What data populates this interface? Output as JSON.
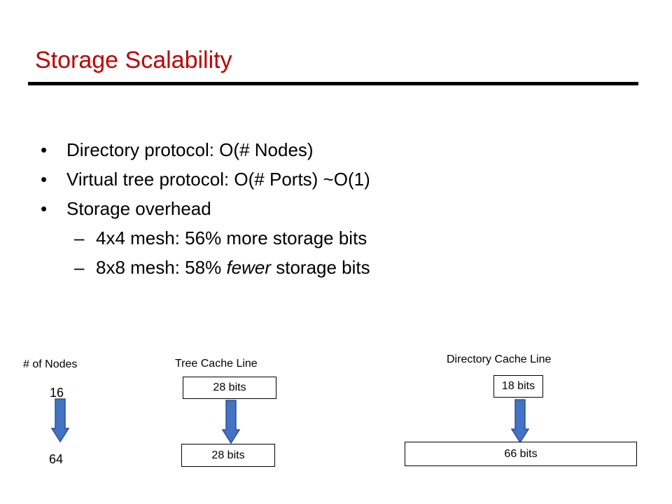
{
  "slide": {
    "title": "Storage Scalability"
  },
  "bullets": [
    {
      "mark": "•",
      "text": "Directory protocol: O(# Nodes)"
    },
    {
      "mark": "•",
      "text": "Virtual tree protocol: O(# Ports) ~O(1)"
    },
    {
      "mark": "•",
      "text": "Storage overhead"
    }
  ],
  "sub_bullets": [
    {
      "mark": "–",
      "text": "4x4 mesh: 56% more storage bits"
    },
    {
      "mark": "–",
      "prefix": "8x8 mesh: 58% ",
      "emph": "fewer",
      "suffix": " storage bits"
    }
  ],
  "diagram": {
    "nodes": {
      "label": "# of Nodes",
      "from": "16",
      "to": "64"
    },
    "tree": {
      "label": "Tree Cache Line",
      "from": "28 bits",
      "to": "28 bits"
    },
    "directory": {
      "label": "Directory Cache Line",
      "from": "18 bits",
      "to": "66 bits"
    },
    "arrow_color": "#4472c4",
    "arrow_outline": "#2f528f"
  }
}
